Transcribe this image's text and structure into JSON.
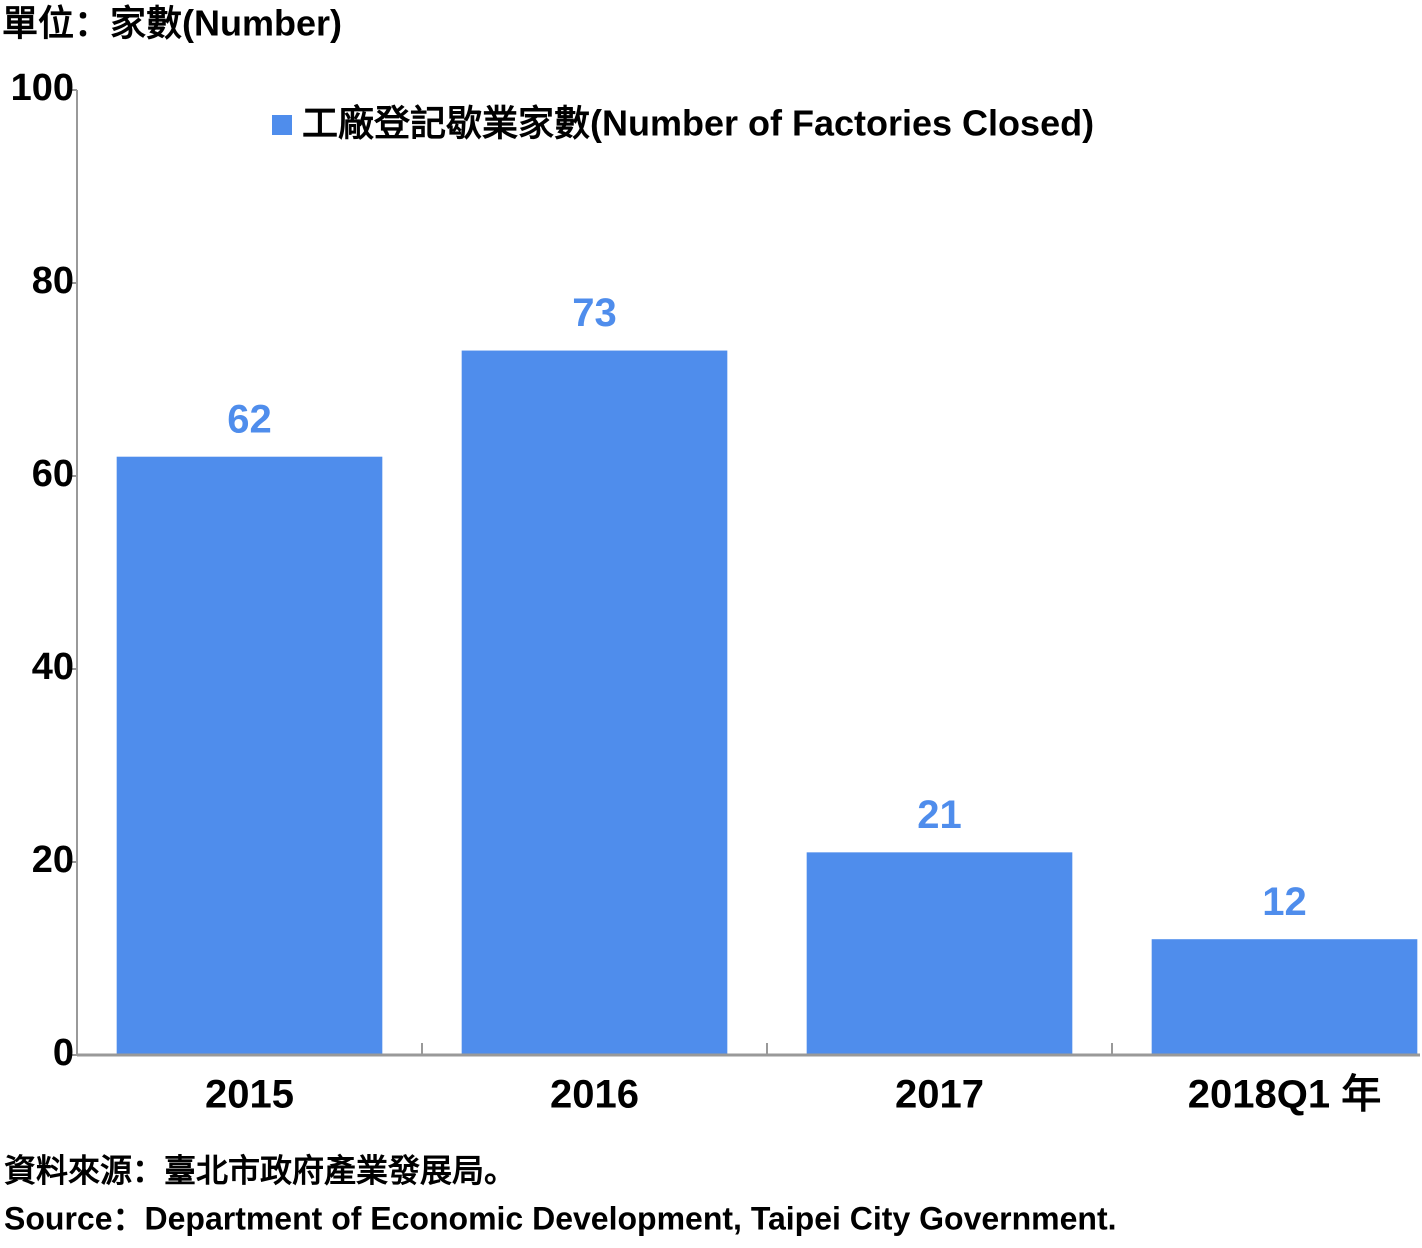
{
  "chart_data": {
    "type": "bar",
    "unit_label": "單位：家數(Number)",
    "categories": [
      "2015",
      "2016",
      "2017",
      "2018Q1 年"
    ],
    "series": [
      {
        "name": "工廠登記歇業家數(Number of Factories Closed)",
        "color": "#4f8dec",
        "values": [
          62,
          73,
          21,
          12
        ]
      }
    ],
    "ylim": [
      0,
      100
    ],
    "yticks": [
      0,
      20,
      40,
      60,
      80,
      100
    ],
    "source": [
      "資料來源：臺北市政府產業發展局。",
      "Source：Department of Economic Development, Taipei City Government."
    ]
  }
}
